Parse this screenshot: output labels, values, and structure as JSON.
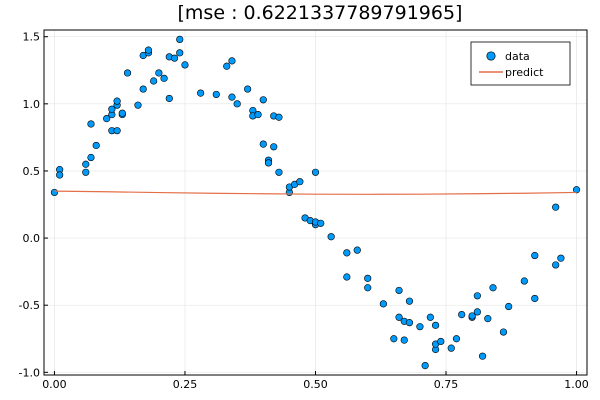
{
  "chart_data": {
    "type": "scatter",
    "title": "[mse : 0.6221337789791965]",
    "xlim": [
      -0.02,
      1.02
    ],
    "ylim": [
      -1.02,
      1.55
    ],
    "xticks": [
      0.0,
      0.25,
      0.5,
      0.75,
      1.0
    ],
    "xtick_labels": [
      "0.00",
      "0.25",
      "0.50",
      "0.75",
      "1.00"
    ],
    "yticks": [
      -1.0,
      -0.5,
      0.0,
      0.5,
      1.0,
      1.5
    ],
    "ytick_labels": [
      "-1.0",
      "-0.5",
      "0.0",
      "0.5",
      "1.0",
      "1.5"
    ],
    "grid": true,
    "legend_position": "top-right",
    "colors": {
      "data": "#009AFA",
      "predict": "#E36F47"
    },
    "series": [
      {
        "name": "data",
        "kind": "scatter",
        "points": [
          [
            0.0,
            0.34
          ],
          [
            0.01,
            0.51
          ],
          [
            0.01,
            0.47
          ],
          [
            0.06,
            0.49
          ],
          [
            0.06,
            0.55
          ],
          [
            0.07,
            0.6
          ],
          [
            0.07,
            0.85
          ],
          [
            0.08,
            0.69
          ],
          [
            0.1,
            0.89
          ],
          [
            0.11,
            0.92
          ],
          [
            0.11,
            0.8
          ],
          [
            0.11,
            0.96
          ],
          [
            0.12,
            0.99
          ],
          [
            0.12,
            0.8
          ],
          [
            0.12,
            1.02
          ],
          [
            0.13,
            0.92
          ],
          [
            0.13,
            0.93
          ],
          [
            0.14,
            1.23
          ],
          [
            0.16,
            0.99
          ],
          [
            0.17,
            1.11
          ],
          [
            0.17,
            1.36
          ],
          [
            0.18,
            1.38
          ],
          [
            0.18,
            1.4
          ],
          [
            0.19,
            1.17
          ],
          [
            0.2,
            1.23
          ],
          [
            0.21,
            1.19
          ],
          [
            0.22,
            1.35
          ],
          [
            0.22,
            1.04
          ],
          [
            0.23,
            1.34
          ],
          [
            0.24,
            1.48
          ],
          [
            0.24,
            1.38
          ],
          [
            0.25,
            1.29
          ],
          [
            0.28,
            1.08
          ],
          [
            0.31,
            1.07
          ],
          [
            0.33,
            1.28
          ],
          [
            0.34,
            1.32
          ],
          [
            0.34,
            1.05
          ],
          [
            0.35,
            1.0
          ],
          [
            0.37,
            1.11
          ],
          [
            0.38,
            0.95
          ],
          [
            0.38,
            0.91
          ],
          [
            0.39,
            0.92
          ],
          [
            0.4,
            1.03
          ],
          [
            0.4,
            0.7
          ],
          [
            0.41,
            0.58
          ],
          [
            0.41,
            0.56
          ],
          [
            0.42,
            0.68
          ],
          [
            0.42,
            0.91
          ],
          [
            0.43,
            0.9
          ],
          [
            0.43,
            0.49
          ],
          [
            0.45,
            0.34
          ],
          [
            0.45,
            0.38
          ],
          [
            0.46,
            0.4
          ],
          [
            0.47,
            0.42
          ],
          [
            0.48,
            0.15
          ],
          [
            0.49,
            0.13
          ],
          [
            0.5,
            0.1
          ],
          [
            0.5,
            0.49
          ],
          [
            0.5,
            0.12
          ],
          [
            0.51,
            0.11
          ],
          [
            0.53,
            0.01
          ],
          [
            0.56,
            -0.29
          ],
          [
            0.56,
            -0.11
          ],
          [
            0.58,
            -0.09
          ],
          [
            0.6,
            -0.3
          ],
          [
            0.6,
            -0.37
          ],
          [
            0.63,
            -0.49
          ],
          [
            0.65,
            -0.75
          ],
          [
            0.66,
            -0.39
          ],
          [
            0.66,
            -0.59
          ],
          [
            0.67,
            -0.62
          ],
          [
            0.67,
            -0.76
          ],
          [
            0.68,
            -0.63
          ],
          [
            0.68,
            -0.47
          ],
          [
            0.7,
            -0.66
          ],
          [
            0.71,
            -0.95
          ],
          [
            0.72,
            -0.59
          ],
          [
            0.73,
            -0.83
          ],
          [
            0.73,
            -0.79
          ],
          [
            0.73,
            -0.65
          ],
          [
            0.74,
            -0.77
          ],
          [
            0.76,
            -0.82
          ],
          [
            0.77,
            -0.75
          ],
          [
            0.78,
            -0.57
          ],
          [
            0.8,
            -0.59
          ],
          [
            0.8,
            -0.58
          ],
          [
            0.81,
            -0.55
          ],
          [
            0.81,
            -0.43
          ],
          [
            0.82,
            -0.88
          ],
          [
            0.83,
            -0.6
          ],
          [
            0.84,
            -0.37
          ],
          [
            0.86,
            -0.7
          ],
          [
            0.87,
            -0.51
          ],
          [
            0.9,
            -0.32
          ],
          [
            0.92,
            -0.45
          ],
          [
            0.92,
            -0.13
          ],
          [
            0.96,
            -0.2
          ],
          [
            0.96,
            0.23
          ],
          [
            0.97,
            -0.15
          ],
          [
            1.0,
            0.36
          ]
        ]
      },
      {
        "name": "predict",
        "kind": "line",
        "x": [
          0.0,
          0.1,
          0.2,
          0.3,
          0.4,
          0.5,
          0.6,
          0.7,
          0.8,
          0.9,
          1.0
        ],
        "y": [
          0.35,
          0.345,
          0.339,
          0.334,
          0.33,
          0.327,
          0.326,
          0.327,
          0.33,
          0.334,
          0.34
        ]
      }
    ]
  }
}
